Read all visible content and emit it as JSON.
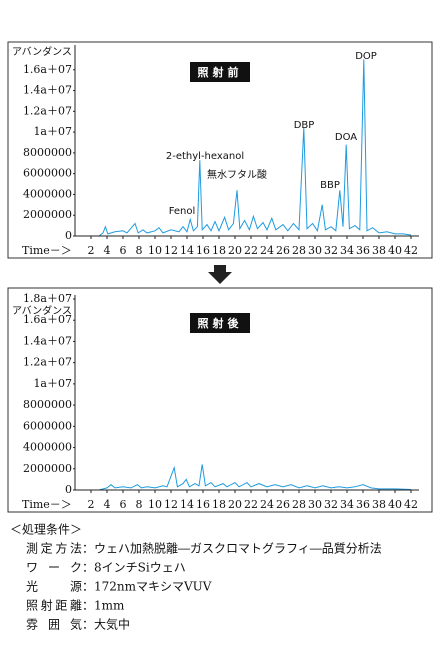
{
  "chart_data": [
    {
      "type": "line",
      "title": "照射前",
      "y_label": "アバンダンス",
      "x_label": "Time－＞",
      "color": "#1e9be0",
      "ylim": [
        0,
        18000000
      ],
      "xlim": [
        0,
        43
      ],
      "yticks": [
        0,
        2000000,
        4000000,
        6000000,
        8000000,
        {
          "value": 10000000,
          "label": "1a＋07"
        },
        {
          "value": 12000000,
          "label": "1.2a＋07"
        },
        {
          "value": 14000000,
          "label": "1.4a＋07"
        },
        {
          "value": 16000000,
          "label": "1.6a＋07"
        }
      ],
      "xticks": [
        2,
        4,
        6,
        8,
        10,
        12,
        14,
        16,
        18,
        20,
        22,
        24,
        26,
        28,
        30,
        32,
        34,
        36,
        38,
        40,
        42
      ],
      "annotations": [
        "DOP",
        "DBP",
        "DOA",
        "BBP",
        "無水フタル酸",
        "2-ethyl-hexanol",
        "Fenol"
      ],
      "x": [
        3,
        3.5,
        3.8,
        4.1,
        5,
        6,
        6.5,
        7.5,
        7.9,
        8.5,
        9,
        10,
        10.5,
        11,
        12,
        13,
        13.5,
        14,
        14.4,
        14.8,
        15.3,
        15.6,
        15.9,
        16.5,
        17,
        17.5,
        18,
        18.7,
        19.2,
        19.8,
        20.25,
        20.6,
        21.2,
        21.8,
        22.3,
        22.8,
        23.5,
        24,
        24.6,
        25.1,
        26,
        26.6,
        27.3,
        28,
        28.6,
        29,
        29.7,
        30.3,
        30.9,
        31.3,
        32,
        32.6,
        33.1,
        33.5,
        33.9,
        34.3,
        35,
        35.6,
        36.1,
        36.5,
        37.2,
        38,
        39,
        40,
        41,
        42
      ],
      "values": [
        0,
        300000,
        900000,
        200000,
        400000,
        500000,
        300000,
        1200000,
        300000,
        600000,
        300000,
        500000,
        800000,
        300000,
        600000,
        400000,
        900000,
        400000,
        1600000,
        500000,
        900000,
        7300000,
        600000,
        1100000,
        500000,
        1400000,
        500000,
        1800000,
        600000,
        1200000,
        4400000,
        700000,
        1500000,
        600000,
        1900000,
        700000,
        1300000,
        600000,
        1700000,
        600000,
        1100000,
        500000,
        1200000,
        600000,
        10400000,
        700000,
        1200000,
        500000,
        3000000,
        600000,
        900000,
        500000,
        4400000,
        900000,
        8800000,
        700000,
        1000000,
        600000,
        17000000,
        500000,
        800000,
        300000,
        400000,
        200000,
        200000,
        100000
      ]
    },
    {
      "type": "line",
      "title": "照射後",
      "y_label": "アバンダンス",
      "x_label": "Time－＞",
      "color": "#1e9be0",
      "ylim": [
        0,
        18000000
      ],
      "xlim": [
        0,
        43
      ],
      "yticks": [
        0,
        2000000,
        4000000,
        6000000,
        8000000,
        {
          "value": 10000000,
          "label": "1a＋07"
        },
        {
          "value": 12000000,
          "label": "1.2a＋07"
        },
        {
          "value": 14000000,
          "label": "1.4a＋07"
        },
        {
          "value": 16000000,
          "label": "1.6a＋07"
        },
        {
          "value": 18000000,
          "label": "1.8a＋07"
        }
      ],
      "xticks": [
        2,
        4,
        6,
        8,
        10,
        12,
        14,
        16,
        18,
        20,
        22,
        24,
        26,
        28,
        30,
        32,
        34,
        36,
        38,
        40,
        42
      ],
      "x": [
        3,
        4,
        4.5,
        5,
        6,
        7,
        7.8,
        8.3,
        9,
        10,
        11,
        11.5,
        12.4,
        12.8,
        13.5,
        13.9,
        14.3,
        15,
        15.5,
        15.9,
        16.3,
        17,
        17.5,
        18.5,
        19,
        20,
        20.5,
        21.5,
        22,
        23,
        24,
        25,
        26,
        27,
        28,
        29,
        30,
        31,
        32,
        33,
        34,
        35,
        36,
        37,
        38,
        40,
        42
      ],
      "values": [
        0,
        200000,
        500000,
        200000,
        300000,
        200000,
        500000,
        200000,
        300000,
        200000,
        400000,
        300000,
        2100000,
        300000,
        600000,
        1000000,
        300000,
        600000,
        400000,
        2400000,
        400000,
        700000,
        300000,
        600000,
        300000,
        700000,
        300000,
        700000,
        300000,
        600000,
        300000,
        500000,
        300000,
        500000,
        200000,
        400000,
        200000,
        400000,
        200000,
        300000,
        200000,
        300000,
        500000,
        200000,
        100000,
        100000,
        50000
      ]
    }
  ],
  "conditions": {
    "heading": "＜処理条件＞",
    "rows": [
      {
        "label": "測定方法",
        "value": "：ウェハ加熱脱離―ガスクロマトグラフィ―品質分析法"
      },
      {
        "label": "ワーク",
        "value": "：8インチSiウェハ"
      },
      {
        "label": "光源",
        "value": "：172nmマキシマVUV"
      },
      {
        "label": "照射距離",
        "value": "：1mm"
      },
      {
        "label": "雰囲気",
        "value": "：大気中"
      }
    ]
  }
}
